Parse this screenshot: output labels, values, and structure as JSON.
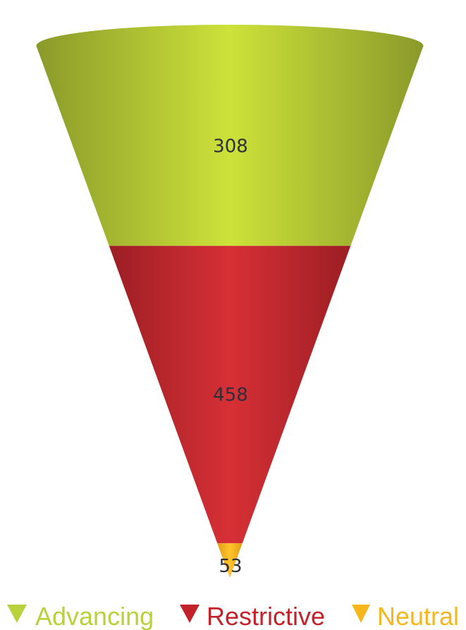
{
  "chart_data": {
    "type": "funnel",
    "title": "",
    "categories": [
      "Advancing",
      "Restrictive",
      "Neutral"
    ],
    "values": [
      308,
      458,
      53
    ],
    "labels": [
      "308",
      "458",
      "53"
    ],
    "colors": [
      "#c6d936",
      "#cf2b30",
      "#f6b71c"
    ],
    "shape": "inverted-cone",
    "legend": {
      "position": "bottom",
      "marker": "down-triangle",
      "entries": [
        {
          "name": "Advancing",
          "color": "#b9d23c"
        },
        {
          "name": "Restrictive",
          "color": "#c4222b"
        },
        {
          "name": "Neutral",
          "color": "#f6b71c"
        }
      ]
    }
  }
}
